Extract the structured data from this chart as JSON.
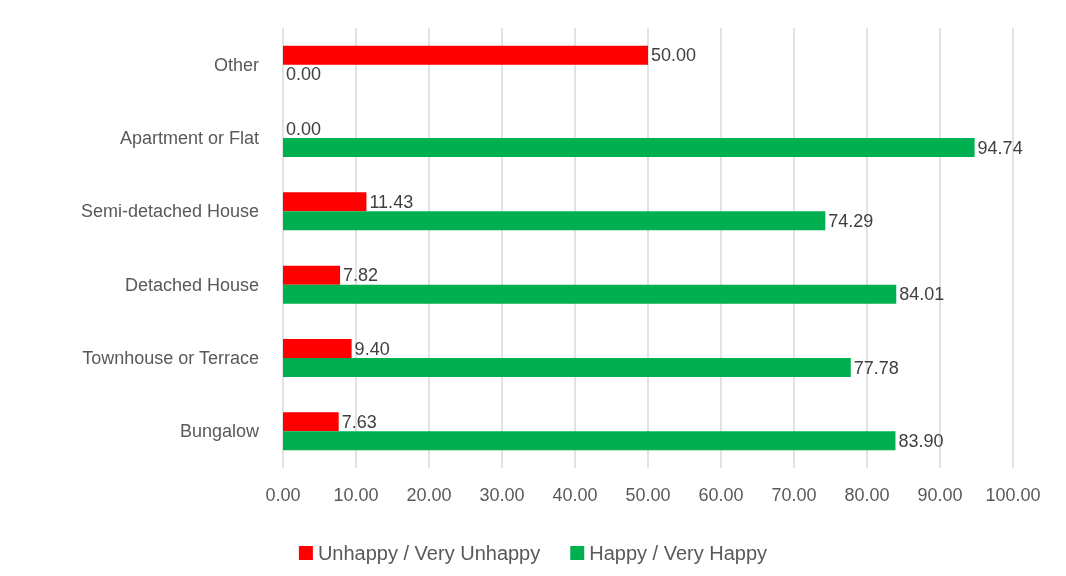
{
  "chart_data": {
    "type": "bar",
    "orientation": "horizontal",
    "categories": [
      "Other",
      "Apartment or Flat",
      "Semi-detached House",
      "Detached House",
      "Townhouse or Terrace",
      "Bungalow"
    ],
    "series": [
      {
        "name": "Unhappy / Very Unhappy",
        "color": "#ff0000",
        "values": [
          50,
          0,
          11.43,
          7.82,
          9.4,
          7.63
        ],
        "value_labels": [
          "50.00",
          "0.00",
          "11.43",
          "7.82",
          "9.40",
          "7.63"
        ]
      },
      {
        "name": "Happy / Very Happy",
        "color": "#00b050",
        "values": [
          0,
          94.74,
          74.29,
          84.01,
          77.78,
          83.9
        ],
        "value_labels": [
          "0.00",
          "94.74",
          "74.29",
          "84.01",
          "77.78",
          "83.90"
        ]
      }
    ],
    "xlim": [
      0,
      100
    ],
    "xticks": [
      {
        "value": 0,
        "label": "0.00"
      },
      {
        "value": 10,
        "label": "10.00"
      },
      {
        "value": 20,
        "label": "20.00"
      },
      {
        "value": 30,
        "label": "30.00"
      },
      {
        "value": 40,
        "label": "40.00"
      },
      {
        "value": 50,
        "label": "50.00"
      },
      {
        "value": 60,
        "label": "60.00"
      },
      {
        "value": 70,
        "label": "70.00"
      },
      {
        "value": 80,
        "label": "80.00"
      },
      {
        "value": 90,
        "label": "90.00"
      },
      {
        "value": 100,
        "label": "100.00"
      }
    ],
    "grid": "x",
    "legend": "bottom"
  }
}
